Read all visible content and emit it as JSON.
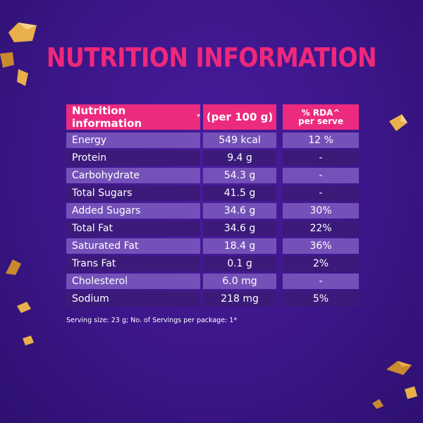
{
  "heading": "NUTRITION INFORMATION",
  "table": {
    "headers": {
      "nutrient": "Nutrition information",
      "nutrient_mark": "*",
      "per100": "(per 100 g)",
      "rda_line1": "% RDA^",
      "rda_line2": "per serve"
    },
    "rows": [
      {
        "nutrient": "Energy",
        "per100": "549 kcal",
        "rda": "12 %"
      },
      {
        "nutrient": "Protein",
        "per100": "9.4 g",
        "rda": "-"
      },
      {
        "nutrient": "Carbohydrate",
        "per100": "54.3 g",
        "rda": "-"
      },
      {
        "nutrient": "Total Sugars",
        "per100": "41.5 g",
        "rda": "-"
      },
      {
        "nutrient": "Added Sugars",
        "per100": "34.6 g",
        "rda": "30%"
      },
      {
        "nutrient": "Total Fat",
        "per100": "34.6 g",
        "rda": "22%"
      },
      {
        "nutrient": "Saturated Fat",
        "per100": "18.4 g",
        "rda": "36%"
      },
      {
        "nutrient": "Trans Fat",
        "per100": "0.1 g",
        "rda": "2%"
      },
      {
        "nutrient": "Cholesterol",
        "per100": "6.0 mg",
        "rda": "-"
      },
      {
        "nutrient": "Sodium",
        "per100": "218 mg",
        "rda": "5%"
      }
    ]
  },
  "footnote": "Serving size: 23 g; No. of Servings per package: 1*",
  "colors": {
    "background": "#3b1688",
    "heading": "#f0287a",
    "header_cell": "#ec2a7e",
    "row_light": "#7451b8",
    "row_dark": "#3b1a7a",
    "crumb": "#e8b04a"
  },
  "decorations": [
    "chocolate-crumb-icon"
  ]
}
